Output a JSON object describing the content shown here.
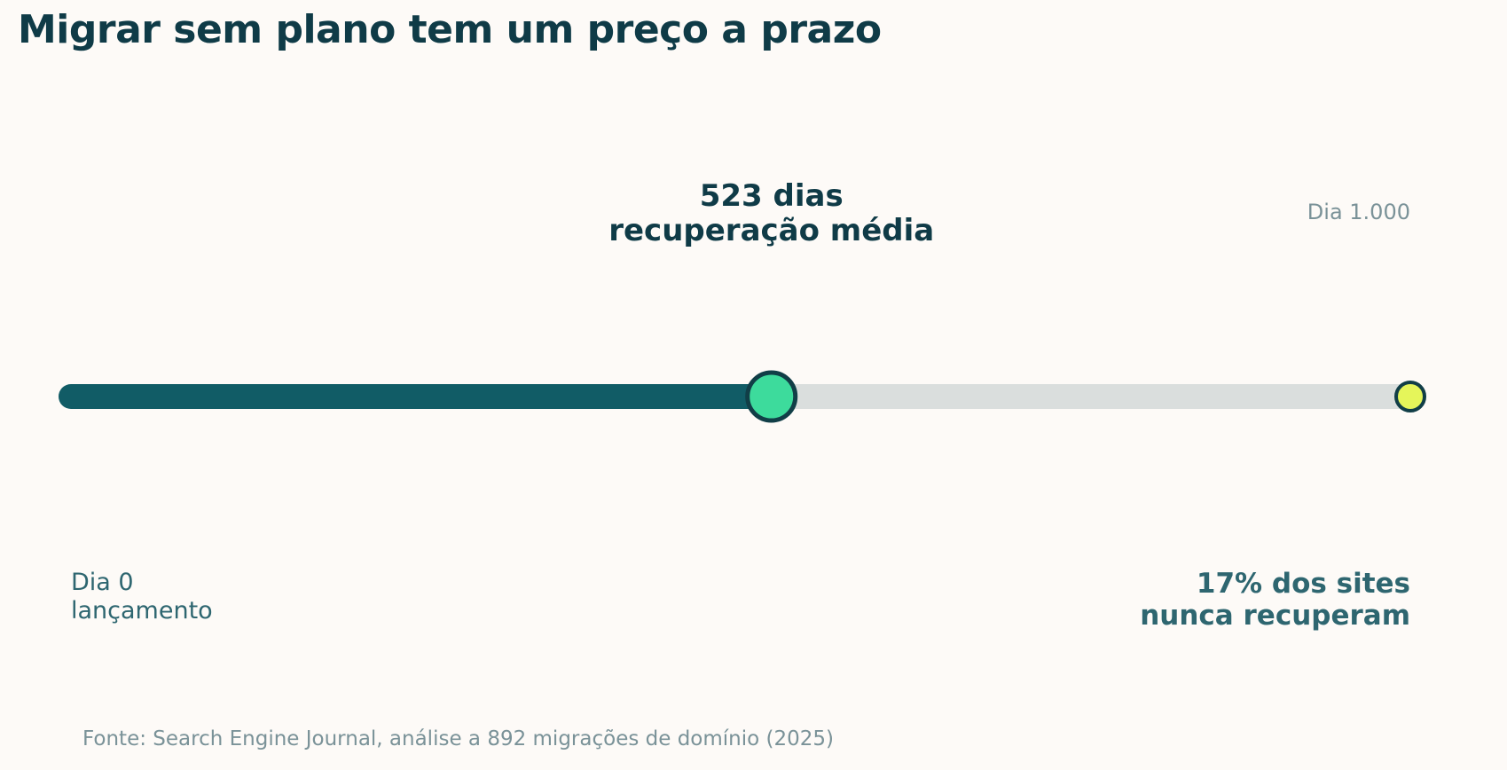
{
  "title": "Migrar sem plano tem um preço a prazo",
  "source": "Fonte: Search Engine Journal, análise a 892 migrações de domínio (2025)",
  "colors": {
    "background": "#fdfaf7",
    "track": "#dadedd",
    "progress": "#115c66",
    "marker_fill": "#3ddb9c",
    "marker_stroke": "#113e47",
    "end_fill": "#e5f55a",
    "title": "#0f3b47",
    "muted": "#7a9298",
    "label": "#2e6670"
  },
  "chart_data": {
    "type": "progress-timeline",
    "x_range": [
      0,
      1000
    ],
    "x_unit": "dias",
    "progress_value": 523,
    "marker": {
      "value": 523,
      "label_lines": [
        "523 dias",
        "recuperação média"
      ]
    },
    "start": {
      "value": 0,
      "label_lines": [
        "Dia 0",
        "lançamento"
      ]
    },
    "end": {
      "value": 1000,
      "top_label": "Dia 1.000",
      "label_lines": [
        "17% dos sites",
        "nunca recuperam"
      ]
    }
  }
}
